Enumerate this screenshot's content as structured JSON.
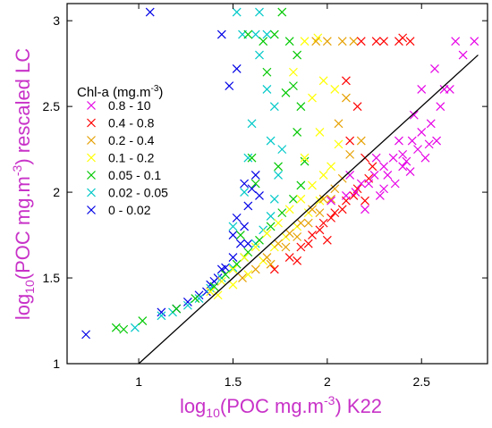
{
  "chart_data": {
    "type": "scatter",
    "title": "",
    "xlabel": {
      "prefix": "log",
      "sub": "10",
      "mid": "(POC mg.m",
      "sup": "-3",
      "suffix": ") K22"
    },
    "ylabel": {
      "prefix": "log",
      "sub": "10",
      "mid": "(POC mg.m",
      "sup": "-3",
      "suffix": ")  rescaled LC"
    },
    "xlim": [
      0.62,
      2.85
    ],
    "ylim": [
      1.0,
      3.1
    ],
    "xticks": [
      "1",
      "1.5",
      "2",
      "2.5"
    ],
    "xtick_values": [
      1,
      1.5,
      2,
      2.5
    ],
    "yticks": [
      "1",
      "1.5",
      "2",
      "2.5",
      "3"
    ],
    "ytick_values": [
      1,
      1.5,
      2,
      2.5,
      3
    ],
    "grid": false,
    "legend": {
      "title": {
        "text": "Chl-a (mg.m",
        "sup": "-3",
        "close": ")"
      },
      "placement": "upper-left"
    },
    "reference_line": {
      "x": [
        1.0,
        2.8
      ],
      "y": [
        1.0,
        2.8
      ]
    },
    "series": [
      {
        "name": "0.8 - 10",
        "color": "#e600e6",
        "points": [
          [
            2.02,
            1.95
          ],
          [
            2.1,
            1.98
          ],
          [
            2.18,
            2.05
          ],
          [
            2.25,
            2.1
          ],
          [
            2.3,
            2.15
          ],
          [
            2.35,
            2.2
          ],
          [
            2.4,
            2.22
          ],
          [
            2.45,
            2.3
          ],
          [
            2.5,
            2.35
          ],
          [
            2.55,
            2.4
          ],
          [
            2.6,
            2.5
          ],
          [
            2.2,
            1.9
          ],
          [
            2.28,
            1.98
          ],
          [
            2.36,
            2.05
          ],
          [
            2.44,
            2.12
          ],
          [
            2.52,
            2.2
          ],
          [
            2.15,
            2.0
          ],
          [
            2.22,
            2.05
          ],
          [
            2.32,
            2.1
          ],
          [
            2.4,
            2.15
          ],
          [
            2.48,
            2.25
          ],
          [
            2.58,
            2.3
          ],
          [
            2.62,
            2.6
          ],
          [
            2.68,
            2.88
          ],
          [
            2.78,
            2.88
          ],
          [
            2.72,
            2.8
          ],
          [
            2.5,
            2.6
          ],
          [
            2.57,
            2.72
          ],
          [
            2.65,
            2.6
          ],
          [
            2.46,
            2.45
          ],
          [
            2.38,
            2.3
          ],
          [
            2.26,
            2.2
          ],
          [
            2.12,
            2.1
          ],
          [
            2.3,
            2.02
          ],
          [
            2.42,
            2.18
          ],
          [
            2.54,
            2.28
          ]
        ]
      },
      {
        "name": "0.4 - 0.8",
        "color": "#ff0000",
        "points": [
          [
            1.72,
            1.55
          ],
          [
            1.8,
            1.62
          ],
          [
            1.86,
            1.68
          ],
          [
            1.92,
            1.75
          ],
          [
            1.98,
            1.82
          ],
          [
            2.04,
            1.88
          ],
          [
            2.1,
            1.95
          ],
          [
            2.16,
            2.02
          ],
          [
            2.22,
            2.08
          ],
          [
            1.9,
            1.7
          ],
          [
            1.96,
            1.78
          ],
          [
            2.02,
            1.85
          ],
          [
            2.08,
            1.9
          ],
          [
            2.14,
            1.98
          ],
          [
            1.84,
            1.6
          ],
          [
            2.0,
            1.72
          ],
          [
            2.2,
            1.95
          ],
          [
            2.24,
            2.15
          ],
          [
            2.2,
            2.2
          ],
          [
            2.12,
            2.3
          ],
          [
            2.16,
            2.5
          ],
          [
            2.1,
            2.65
          ],
          [
            2.18,
            2.88
          ],
          [
            2.3,
            2.88
          ],
          [
            2.38,
            2.88
          ],
          [
            2.44,
            2.88
          ],
          [
            2.4,
            2.9
          ],
          [
            2.26,
            2.88
          ]
        ]
      },
      {
        "name": "0.2 - 0.4",
        "color": "#e6a000",
        "points": [
          [
            1.55,
            1.5
          ],
          [
            1.62,
            1.55
          ],
          [
            1.68,
            1.62
          ],
          [
            1.74,
            1.7
          ],
          [
            1.8,
            1.76
          ],
          [
            1.86,
            1.82
          ],
          [
            1.92,
            1.9
          ],
          [
            1.98,
            1.96
          ],
          [
            2.04,
            2.02
          ],
          [
            1.7,
            1.58
          ],
          [
            1.78,
            1.68
          ],
          [
            1.84,
            1.74
          ],
          [
            1.9,
            1.82
          ],
          [
            1.96,
            1.88
          ],
          [
            2.02,
            1.96
          ],
          [
            2.08,
            2.08
          ],
          [
            2.12,
            2.22
          ],
          [
            2.06,
            2.4
          ],
          [
            2.1,
            2.55
          ],
          [
            2.14,
            2.88
          ],
          [
            2.08,
            2.88
          ],
          [
            2.0,
            2.88
          ],
          [
            1.94,
            2.88
          ],
          [
            2.18,
            2.3
          ]
        ]
      },
      {
        "name": "0.1 - 0.2",
        "color": "#ffff00",
        "points": [
          [
            1.38,
            1.42
          ],
          [
            1.44,
            1.48
          ],
          [
            1.5,
            1.55
          ],
          [
            1.56,
            1.62
          ],
          [
            1.62,
            1.68
          ],
          [
            1.68,
            1.76
          ],
          [
            1.74,
            1.82
          ],
          [
            1.8,
            1.9
          ],
          [
            1.86,
            1.96
          ],
          [
            1.92,
            2.04
          ],
          [
            1.98,
            2.1
          ],
          [
            1.42,
            1.4
          ],
          [
            1.5,
            1.46
          ],
          [
            1.58,
            1.52
          ],
          [
            1.66,
            1.6
          ],
          [
            1.72,
            1.68
          ],
          [
            1.78,
            1.74
          ],
          [
            1.84,
            1.8
          ],
          [
            1.9,
            1.88
          ],
          [
            1.96,
            1.95
          ],
          [
            2.02,
            2.15
          ],
          [
            1.96,
            2.35
          ],
          [
            1.92,
            2.55
          ],
          [
            1.98,
            2.65
          ],
          [
            2.04,
            2.6
          ],
          [
            1.88,
            2.88
          ],
          [
            1.95,
            2.9
          ],
          [
            1.82,
            2.7
          ],
          [
            2.06,
            2.28
          ],
          [
            1.88,
            2.2
          ]
        ]
      },
      {
        "name": "0.05 - 0.1",
        "color": "#00c800",
        "points": [
          [
            0.88,
            1.21
          ],
          [
            0.92,
            1.2
          ],
          [
            1.02,
            1.25
          ],
          [
            1.2,
            1.32
          ],
          [
            1.3,
            1.38
          ],
          [
            1.4,
            1.45
          ],
          [
            1.46,
            1.52
          ],
          [
            1.52,
            1.58
          ],
          [
            1.58,
            1.65
          ],
          [
            1.64,
            1.72
          ],
          [
            1.7,
            1.8
          ],
          [
            1.76,
            1.88
          ],
          [
            1.82,
            1.96
          ],
          [
            1.86,
            2.04
          ],
          [
            1.88,
            2.18
          ],
          [
            1.84,
            2.35
          ],
          [
            1.86,
            2.5
          ],
          [
            1.82,
            2.62
          ],
          [
            1.66,
            2.88
          ],
          [
            1.58,
            2.92
          ],
          [
            1.76,
            3.05
          ],
          [
            1.72,
            2.92
          ],
          [
            1.68,
            2.7
          ],
          [
            1.78,
            2.58
          ],
          [
            1.84,
            2.8
          ],
          [
            1.8,
            2.88
          ],
          [
            1.62,
            2.05
          ],
          [
            1.6,
            2.2
          ],
          [
            1.54,
            1.75
          ],
          [
            1.74,
            2.15
          ]
        ]
      },
      {
        "name": "0.02 - 0.05",
        "color": "#00c8c8",
        "points": [
          [
            0.98,
            1.21
          ],
          [
            1.12,
            1.28
          ],
          [
            1.18,
            1.3
          ],
          [
            1.26,
            1.34
          ],
          [
            1.32,
            1.38
          ],
          [
            1.38,
            1.44
          ],
          [
            1.44,
            1.5
          ],
          [
            1.5,
            1.56
          ],
          [
            1.56,
            1.62
          ],
          [
            1.62,
            1.7
          ],
          [
            1.66,
            1.78
          ],
          [
            1.7,
            1.86
          ],
          [
            1.72,
            1.96
          ],
          [
            1.74,
            2.1
          ],
          [
            1.7,
            2.3
          ],
          [
            1.72,
            2.5
          ],
          [
            1.68,
            2.6
          ],
          [
            1.64,
            2.8
          ],
          [
            1.62,
            2.92
          ],
          [
            1.55,
            2.92
          ],
          [
            1.68,
            2.92
          ],
          [
            1.52,
            3.05
          ],
          [
            1.64,
            3.05
          ],
          [
            1.58,
            2.2
          ],
          [
            1.56,
            2.0
          ],
          [
            1.5,
            1.8
          ],
          [
            1.76,
            2.25
          ],
          [
            1.6,
            2.4
          ]
        ]
      },
      {
        "name": "0 - 0.02",
        "color": "#0000e6",
        "points": [
          [
            0.72,
            1.17
          ],
          [
            1.12,
            1.3
          ],
          [
            1.2,
            1.32
          ],
          [
            1.26,
            1.36
          ],
          [
            1.32,
            1.4
          ],
          [
            1.38,
            1.46
          ],
          [
            1.42,
            1.5
          ],
          [
            1.46,
            1.56
          ],
          [
            1.5,
            1.62
          ],
          [
            1.54,
            1.7
          ],
          [
            1.56,
            1.8
          ],
          [
            1.58,
            1.92
          ],
          [
            1.6,
            2.02
          ],
          [
            1.62,
            2.1
          ],
          [
            1.56,
            2.05
          ],
          [
            1.5,
            1.75
          ],
          [
            1.48,
            2.62
          ],
          [
            1.52,
            2.72
          ],
          [
            1.44,
            2.92
          ],
          [
            1.06,
            3.05
          ],
          [
            1.44,
            1.55
          ],
          [
            1.36,
            1.42
          ],
          [
            1.64,
            1.98
          ],
          [
            1.52,
            1.85
          ],
          [
            1.58,
            1.7
          ],
          [
            1.4,
            1.48
          ]
        ]
      }
    ]
  }
}
